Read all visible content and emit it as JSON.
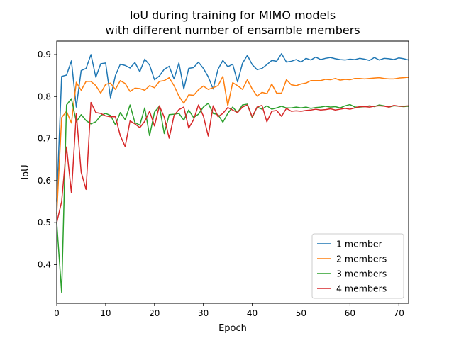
{
  "chart_data": {
    "type": "line",
    "title_lines": [
      "IoU during training for MIMO models",
      "with different number of ensamble members"
    ],
    "xlabel": "Epoch",
    "ylabel": "IoU",
    "xlim": [
      0,
      72
    ],
    "ylim": [
      0.308,
      0.932
    ],
    "xticks": [
      0,
      10,
      20,
      30,
      40,
      50,
      60,
      70
    ],
    "yticks": [
      0.4,
      0.5,
      0.6,
      0.7,
      0.8,
      0.9
    ],
    "ytick_labels": [
      "0.4",
      "0.5",
      "0.6",
      "0.7",
      "0.8",
      "0.9"
    ],
    "grid": false,
    "legend_position": "lower-right",
    "x": [
      0,
      1,
      2,
      3,
      4,
      5,
      6,
      7,
      8,
      9,
      10,
      11,
      12,
      13,
      14,
      15,
      16,
      17,
      18,
      19,
      20,
      21,
      22,
      23,
      24,
      25,
      26,
      27,
      28,
      29,
      30,
      31,
      32,
      33,
      34,
      35,
      36,
      37,
      38,
      39,
      40,
      41,
      42,
      43,
      44,
      45,
      46,
      47,
      48,
      49,
      50,
      51,
      52,
      53,
      54,
      55,
      56,
      57,
      58,
      59,
      60,
      61,
      62,
      63,
      64,
      65,
      66,
      67,
      68,
      69,
      70,
      71,
      72
    ],
    "series": [
      {
        "name": "1 member",
        "color": "#1f77b4",
        "values": [
          0.55,
          0.848,
          0.851,
          0.885,
          0.775,
          0.862,
          0.867,
          0.9,
          0.846,
          0.878,
          0.88,
          0.797,
          0.85,
          0.877,
          0.874,
          0.868,
          0.881,
          0.859,
          0.889,
          0.875,
          0.84,
          0.849,
          0.865,
          0.872,
          0.842,
          0.88,
          0.818,
          0.867,
          0.869,
          0.882,
          0.867,
          0.847,
          0.818,
          0.865,
          0.886,
          0.871,
          0.877,
          0.835,
          0.879,
          0.898,
          0.876,
          0.864,
          0.867,
          0.876,
          0.886,
          0.884,
          0.902,
          0.882,
          0.884,
          0.888,
          0.882,
          0.891,
          0.887,
          0.894,
          0.888,
          0.891,
          0.893,
          0.89,
          0.888,
          0.887,
          0.889,
          0.888,
          0.891,
          0.889,
          0.886,
          0.893,
          0.887,
          0.891,
          0.89,
          0.888,
          0.892,
          0.89,
          0.887
        ]
      },
      {
        "name": "2 members",
        "color": "#ff7f0e",
        "values": [
          0.52,
          0.75,
          0.765,
          0.737,
          0.834,
          0.815,
          0.836,
          0.836,
          0.826,
          0.808,
          0.829,
          0.832,
          0.817,
          0.838,
          0.831,
          0.812,
          0.82,
          0.819,
          0.815,
          0.826,
          0.821,
          0.836,
          0.838,
          0.845,
          0.826,
          0.801,
          0.784,
          0.804,
          0.803,
          0.816,
          0.825,
          0.817,
          0.821,
          0.826,
          0.848,
          0.778,
          0.833,
          0.826,
          0.817,
          0.84,
          0.818,
          0.801,
          0.81,
          0.807,
          0.83,
          0.808,
          0.808,
          0.84,
          0.828,
          0.826,
          0.83,
          0.832,
          0.838,
          0.838,
          0.838,
          0.841,
          0.84,
          0.843,
          0.839,
          0.841,
          0.84,
          0.843,
          0.843,
          0.842,
          0.843,
          0.844,
          0.845,
          0.843,
          0.842,
          0.842,
          0.844,
          0.845,
          0.846
        ]
      },
      {
        "name": "3 members",
        "color": "#2ca02c",
        "values": [
          0.5,
          0.334,
          0.78,
          0.795,
          0.74,
          0.757,
          0.743,
          0.735,
          0.74,
          0.755,
          0.76,
          0.755,
          0.733,
          0.762,
          0.745,
          0.78,
          0.738,
          0.732,
          0.773,
          0.707,
          0.763,
          0.777,
          0.712,
          0.757,
          0.758,
          0.76,
          0.744,
          0.768,
          0.75,
          0.758,
          0.775,
          0.784,
          0.76,
          0.757,
          0.739,
          0.76,
          0.775,
          0.762,
          0.78,
          0.782,
          0.75,
          0.775,
          0.77,
          0.778,
          0.77,
          0.773,
          0.777,
          0.773,
          0.773,
          0.775,
          0.773,
          0.775,
          0.772,
          0.774,
          0.775,
          0.777,
          0.775,
          0.776,
          0.773,
          0.778,
          0.781,
          0.775,
          0.775,
          0.776,
          0.778,
          0.776,
          0.78,
          0.778,
          0.775,
          0.778,
          0.777,
          0.776,
          0.777
        ]
      },
      {
        "name": "4 members",
        "color": "#d62728",
        "values": [
          0.5,
          0.55,
          0.68,
          0.571,
          0.76,
          0.62,
          0.579,
          0.786,
          0.762,
          0.76,
          0.754,
          0.752,
          0.752,
          0.707,
          0.681,
          0.742,
          0.735,
          0.726,
          0.741,
          0.765,
          0.73,
          0.778,
          0.751,
          0.701,
          0.755,
          0.769,
          0.775,
          0.725,
          0.745,
          0.78,
          0.754,
          0.706,
          0.778,
          0.752,
          0.76,
          0.774,
          0.768,
          0.762,
          0.775,
          0.78,
          0.752,
          0.775,
          0.779,
          0.74,
          0.765,
          0.767,
          0.753,
          0.772,
          0.765,
          0.766,
          0.765,
          0.767,
          0.768,
          0.77,
          0.768,
          0.769,
          0.771,
          0.768,
          0.77,
          0.772,
          0.77,
          0.773,
          0.776,
          0.776,
          0.775,
          0.777,
          0.778,
          0.777,
          0.775,
          0.779,
          0.777,
          0.777,
          0.778
        ]
      }
    ]
  }
}
